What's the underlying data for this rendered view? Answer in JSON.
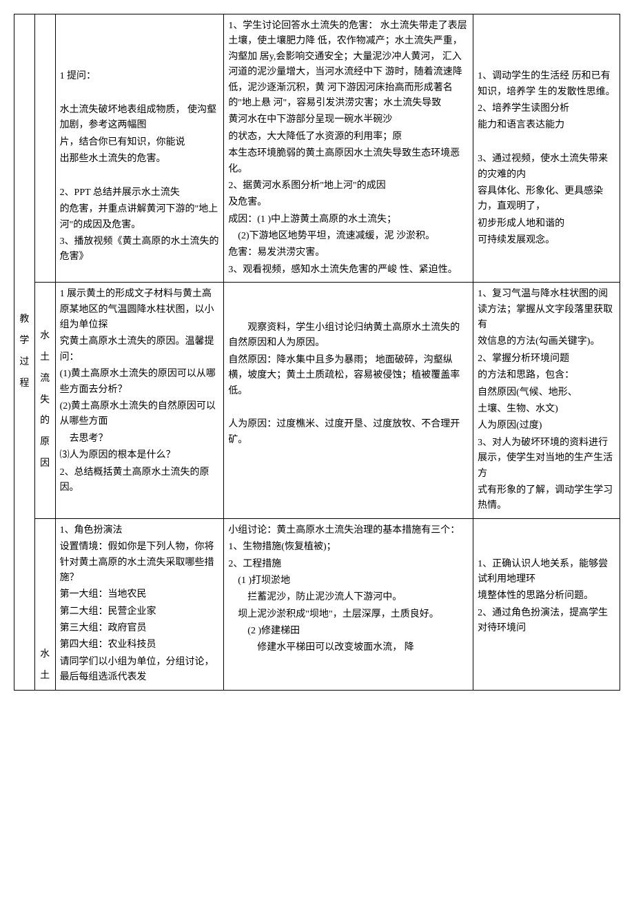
{
  "rowLabel": {
    "main": "教学过程",
    "r2": "水土流失的原因",
    "r3": "水土"
  },
  "row1": {
    "colC": {
      "p1": "1 提问：",
      "p2": "水土流失破坏地表组成物质，  使沟壑加剧，参考这两幅图",
      "p3": "片，结合你已有知识，你能说",
      "p4": "出那些水土流失的危害。",
      "p5": "2、PPT 总结并展示水土流失",
      "p6": "的危害，并重点讲解黄河下游的\"地上河\"的成因及危害。",
      "p7": "3、播放视频《黄土高原的水土流失的危害》"
    },
    "colD": {
      "p1": "1、学生讨论回答水土流失的危害：       水土流失带走了表层土壤，使土壤肥力降 低，农作物减产；水土流失严重，沟壑加 居y,会影响交通安全；大量泥沙冲人黄河， 汇入河道的泥沙量增大，当河水流经中下 游时，随着流速降低，泥沙逐渐沉积，黄 河下游因河床抬高而形成著名的\"地上悬 河\"，容易引发洪涝灾害；水土流失导致",
      "p2": "黄河水在中下游部分呈现一碗水半碗沙",
      "p3": "的状态，大大降低了水资源的利用率；原",
      "p4": "本生态环境脆弱的黄土高原因水土流失导致生态环境恶化。",
      "p5": "2、据黄河水系图分析\"地上河\"的成因",
      "p6": "及危害。",
      "p7": "成因：(1  )中上游黄土高原的水土流失；",
      "p8": "　(2)下游地区地势平坦，流速减缓，泥 沙淤积。",
      "p9": "危害：易发洪涝灾害。",
      "p10": "3、观看视频，感知水土流失危害的严峻 性、紧迫性。"
    },
    "colE": {
      "p1": "1、调动学生的生活经 历和已有知识，培养学 生的发散性思维。",
      "p2": "2、培养学生读图分析",
      "p3": "能力和语言表达能力",
      "p4": "3、通过视频，使水土流失带来的灾难的内",
      "p5": "容具体化、形象化、更具感染力，直观明了，",
      "p6": "初步形成人地和谐的",
      "p7": "可持续发展观念。"
    }
  },
  "row2": {
    "colC": {
      "p1": "1 展示黄土的形成文子材料与黄土高原某地区的气温圆降水柱状图，以小组为单位探",
      "p2": "究黄土高原水土流失的原因。温馨提问：",
      "p3": "(1)黄土高原水土流失的原因可以从哪些方面去分析？",
      "p4": "(2)黄土高原水土流失的自然原因可以从哪些方面",
      "p5": "去思考？",
      "p6": "⑶人为原因的根本是什么？",
      "p7": "2、总结概括黄土高原水土流失的原因。"
    },
    "colD": {
      "p1": "　　观察资料，学生小组讨论归纳黄土高原水土流失的自然原因和人为原因。",
      "p2": "自然原因：降水集中且多为暴雨；  地面破碎，沟壑纵横，坡度大；黄土土质疏松，容易被侵蚀；植被覆盖率低。",
      "p3": "人为原因：过度樵米、过度开垦、过度放牧、不合理开矿。"
    },
    "colE": {
      "p1": "1、复习气温与降水柱状图的阅读方法；掌握从文字段落里获取有",
      "p2": "效信息的方法(勾画关键字)。",
      "p3": "2、掌握分析环境问题",
      "p4": "的方法和思路，包含：",
      "p5": "自然原因(气候、地形、",
      "p6": "土壤、生物、水文)",
      "p7": "人为原因(过度)",
      "p8": "3、对人为破坏环境的资料进行展示，使学生对当地的生产生活方",
      "p9": "式有形象的了解，调动学生学习热情。"
    }
  },
  "row3": {
    "colC": {
      "p1": "1、角色扮演法",
      "p2": "设置情境：假如你是下列人物，你将针对黄土高原的水土流失采取哪些措施？",
      "p3": "第一大组：当地农民",
      "p4": "第二大组：民营企业家",
      "p5": "第三大组：政府官员",
      "p6": "第四大组：农业科技员",
      "p7": "请同学们以小组为单位，分组讨论，最后每组选派代表发"
    },
    "colD": {
      "p1": "小组讨论：黄土高原水土流失治理的基本措施有三个：",
      "p2": "1、生物措施(恢复植被)；",
      "p3": "2、工程措施",
      "p4": "　(1  )打坝淤地",
      "p5": "　　拦蓄泥沙，防止泥沙流人下游河中。",
      "p6": "　坝上泥沙淤积成\"坝地\"，土层深厚，土质良好。",
      "p7": "　　(2  )修建梯田",
      "p8": "　　　修建水平梯田可以改变坡面水流，     降"
    },
    "colE": {
      "p1": "1、正确认识人地关系，能够尝试利用地理环",
      "p2": "境整体性的思路分析问题。",
      "p3": "2、通过角色扮演法，提高学生对待环境问"
    }
  }
}
